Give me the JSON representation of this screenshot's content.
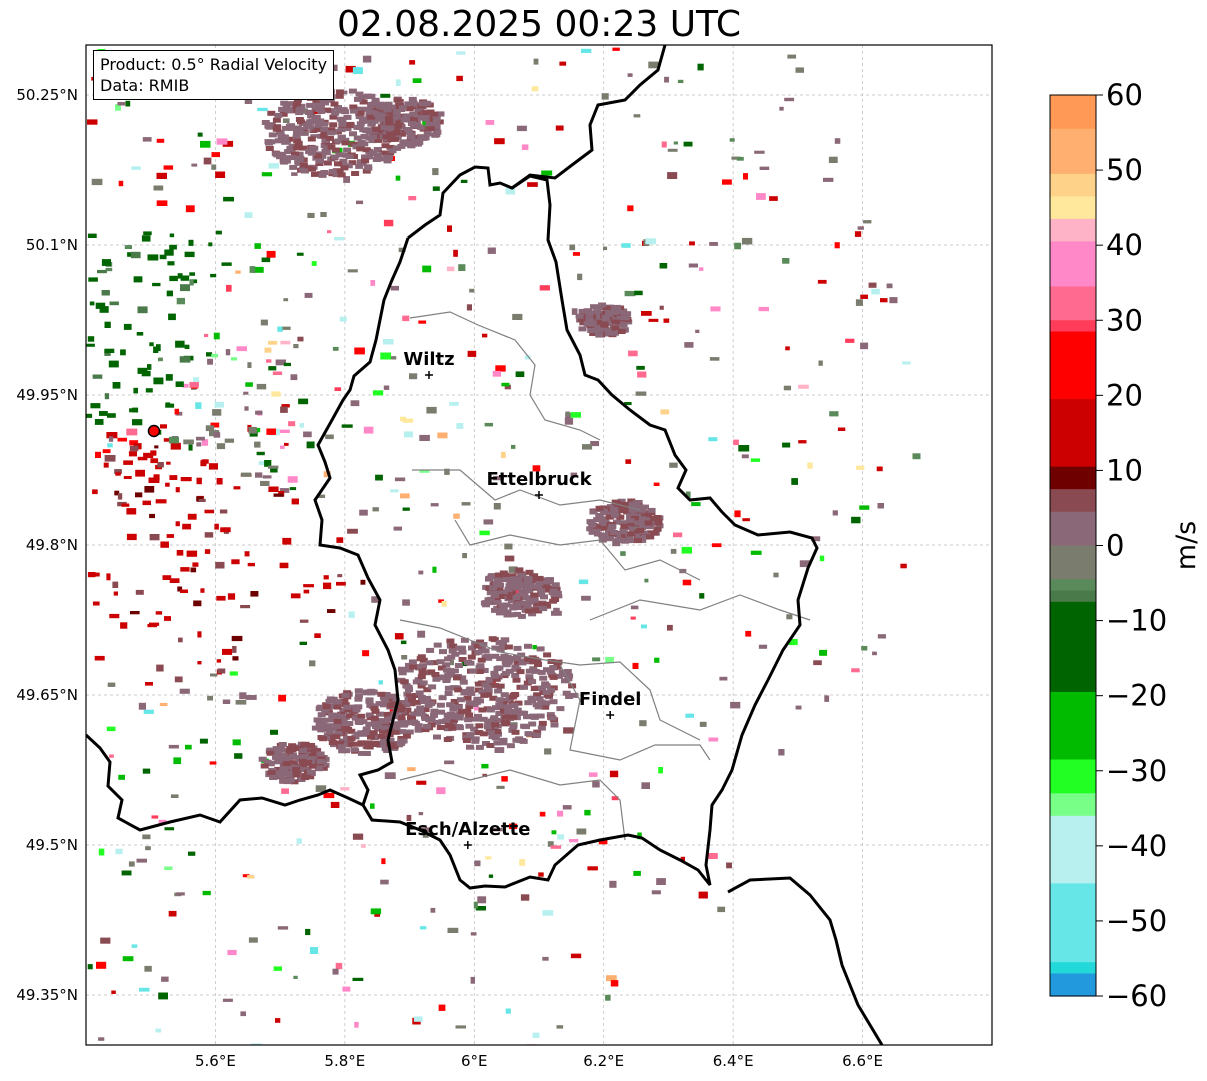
{
  "title": "02.08.2025 00:23 UTC",
  "info": {
    "product": "Product: 0.5° Radial Velocity",
    "source": "Data: RMIB"
  },
  "map": {
    "lon_range": [
      5.4,
      6.8
    ],
    "lat_range": [
      49.3,
      50.3
    ],
    "grid": true,
    "lat_ticks": [
      {
        "value": 49.35,
        "label": "49.35°N"
      },
      {
        "value": 49.5,
        "label": "49.5°N"
      },
      {
        "value": 49.65,
        "label": "49.65°N"
      },
      {
        "value": 49.8,
        "label": "49.8°N"
      },
      {
        "value": 49.95,
        "label": "49.95°N"
      },
      {
        "value": 50.1,
        "label": "50.1°N"
      },
      {
        "value": 50.25,
        "label": "50.25°N"
      }
    ],
    "lon_ticks": [
      {
        "value": 5.6,
        "label": "5.6°E"
      },
      {
        "value": 5.8,
        "label": "5.8°E"
      },
      {
        "value": 6.0,
        "label": "6°E"
      },
      {
        "value": 6.2,
        "label": "6.2°E"
      },
      {
        "value": 6.4,
        "label": "6.4°E"
      },
      {
        "value": 6.6,
        "label": "6.6°E"
      }
    ],
    "radar_site": {
      "lon": 5.505,
      "lat": 49.914
    },
    "cities": [
      {
        "name": "Wiltz",
        "lon": 5.93,
        "lat": 49.97
      },
      {
        "name": "Ettelbruck",
        "lon": 6.1,
        "lat": 49.85
      },
      {
        "name": "Findel",
        "lon": 6.21,
        "lat": 49.63
      },
      {
        "name": "Esch/Alzette",
        "lon": 5.99,
        "lat": 49.5
      }
    ]
  },
  "colorbar": {
    "label": "m/s",
    "min": -60,
    "max": 60,
    "ticks": [
      "60",
      "50",
      "40",
      "30",
      "20",
      "10",
      "0",
      "−10",
      "−20",
      "−30",
      "−40",
      "−50",
      "−60"
    ],
    "stops": [
      {
        "v": 60,
        "color": "#ff9955"
      },
      {
        "v": 55,
        "color": "#ffb070"
      },
      {
        "v": 50,
        "color": "#ffd28a"
      },
      {
        "v": 47,
        "color": "#ffe89c"
      },
      {
        "v": 44,
        "color": "#ffb3c6"
      },
      {
        "v": 40,
        "color": "#ff88c8"
      },
      {
        "v": 35,
        "color": "#ff6a90"
      },
      {
        "v": 30,
        "color": "#ff3c5a"
      },
      {
        "v": 28,
        "color": "#ff0000"
      },
      {
        "v": 20,
        "color": "#cc0000"
      },
      {
        "v": 10,
        "color": "#6e0000"
      },
      {
        "v": 8,
        "color": "#8a4a52"
      },
      {
        "v": 4,
        "color": "#8a6878"
      },
      {
        "v": 0,
        "color": "#7a7c6e"
      },
      {
        "v": -4,
        "color": "#5a8a5a"
      },
      {
        "v": -6,
        "color": "#4a7a4a"
      },
      {
        "v": -8,
        "color": "#006400"
      },
      {
        "v": -20,
        "color": "#00bb00"
      },
      {
        "v": -28,
        "color": "#22ff22"
      },
      {
        "v": -33,
        "color": "#77ff88"
      },
      {
        "v": -36,
        "color": "#b8f0f0"
      },
      {
        "v": -45,
        "color": "#66e6e6"
      },
      {
        "v": -55,
        "color": "#22d8d8"
      },
      {
        "v": -57,
        "color": "#2299dd"
      },
      {
        "v": -60,
        "color": "#2277bb"
      }
    ]
  }
}
